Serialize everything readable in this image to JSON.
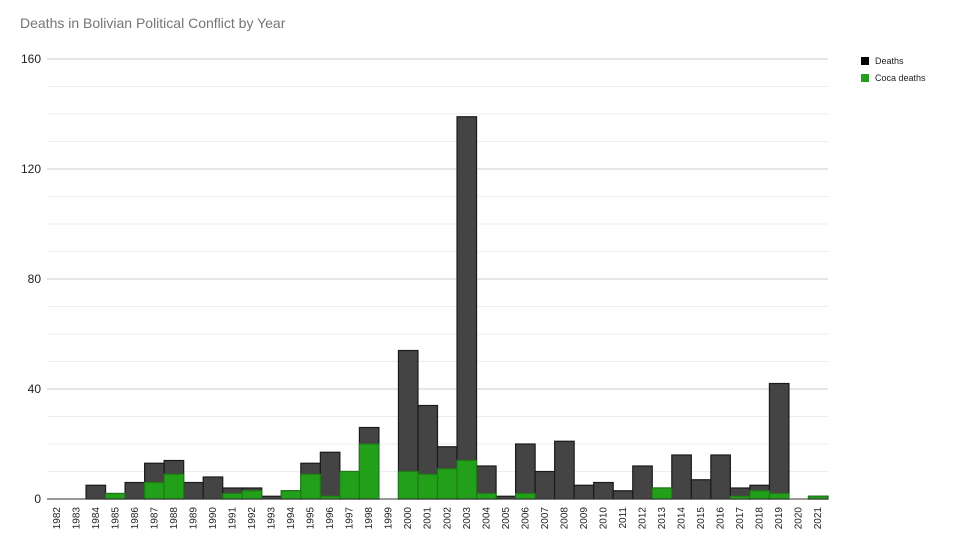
{
  "chart_data": {
    "type": "area",
    "title": "Deaths in Bolivian Political Conflict by Year",
    "xlabel": "",
    "ylabel": "",
    "categories": [
      "1982",
      "1983",
      "1984",
      "1985",
      "1986",
      "1987",
      "1988",
      "1989",
      "1990",
      "1991",
      "1992",
      "1993",
      "1994",
      "1995",
      "1996",
      "1997",
      "1998",
      "1999",
      "2000",
      "2001",
      "2002",
      "2003",
      "2004",
      "2005",
      "2006",
      "2007",
      "2008",
      "2009",
      "2010",
      "2011",
      "2012",
      "2013",
      "2014",
      "2015",
      "2016",
      "2017",
      "2018",
      "2019",
      "2020",
      "2021"
    ],
    "ylim": [
      0,
      160
    ],
    "yticks": [
      "0",
      "40",
      "80",
      "120",
      "160"
    ],
    "grid": true,
    "legend_position": "top-right",
    "series": [
      {
        "name": "Deaths",
        "color": "#444444",
        "values": [
          0,
          0,
          5,
          2,
          6,
          13,
          14,
          6,
          8,
          4,
          4,
          1,
          3,
          13,
          17,
          10,
          26,
          0,
          54,
          34,
          19,
          139,
          12,
          1,
          20,
          10,
          21,
          5,
          6,
          3,
          12,
          4,
          16,
          7,
          16,
          4,
          5,
          42,
          0,
          1
        ]
      },
      {
        "name": "Coca deaths",
        "color": "#22a01a",
        "values": [
          0,
          0,
          0,
          2,
          0,
          6,
          9,
          0,
          0,
          2,
          3,
          0,
          3,
          9,
          1,
          10,
          20,
          0,
          10,
          9,
          11,
          14,
          2,
          0,
          2,
          0,
          0,
          0,
          0,
          0,
          0,
          4,
          0,
          0,
          0,
          1,
          3,
          2,
          0,
          1
        ]
      }
    ]
  }
}
